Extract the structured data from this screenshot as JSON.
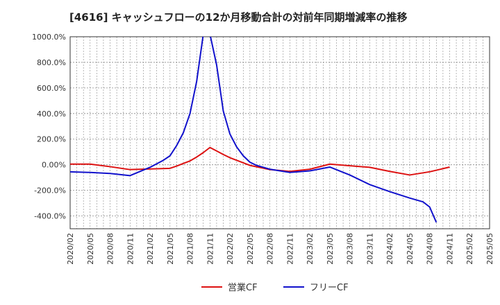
{
  "chart_data": {
    "type": "line",
    "title": "[4616]  キャッシュフローの12か月移動合計の対前年同期増減率の推移",
    "xlabel": "",
    "ylabel": "",
    "ylim": [
      -500,
      1000
    ],
    "yticks": [
      1000,
      800,
      600,
      400,
      200,
      0,
      -200,
      -400
    ],
    "ytick_labels": [
      "1000.0%",
      "800.0%",
      "600.0%",
      "400.0%",
      "200.0%",
      "0.00%",
      "-200.0%",
      "-400.0%"
    ],
    "x_ticks": [
      "2020/02",
      "2020/05",
      "2020/08",
      "2020/11",
      "2021/02",
      "2021/05",
      "2021/08",
      "2021/11",
      "2022/02",
      "2022/05",
      "2022/08",
      "2022/11",
      "2023/02",
      "2023/05",
      "2023/08",
      "2023/11",
      "2024/02",
      "2024/05",
      "2024/08",
      "2024/11",
      "2025/02",
      "2025/05"
    ],
    "grid": true,
    "legend_position": "bottom-center",
    "series": [
      {
        "name": "営業CF",
        "color": "#dd1111",
        "points": [
          [
            "2020/02",
            5
          ],
          [
            "2020/05",
            5
          ],
          [
            "2020/08",
            -15
          ],
          [
            "2020/11",
            -38
          ],
          [
            "2021/02",
            -33
          ],
          [
            "2021/05",
            -28
          ],
          [
            "2021/06",
            -10
          ],
          [
            "2021/07",
            10
          ],
          [
            "2021/08",
            30
          ],
          [
            "2021/09",
            60
          ],
          [
            "2021/10",
            95
          ],
          [
            "2021/11",
            135
          ],
          [
            "2021/12",
            108
          ],
          [
            "2022/01",
            80
          ],
          [
            "2022/02",
            55
          ],
          [
            "2022/03",
            35
          ],
          [
            "2022/05",
            -5
          ],
          [
            "2022/08",
            -38
          ],
          [
            "2022/11",
            -52
          ],
          [
            "2023/02",
            -35
          ],
          [
            "2023/05",
            5
          ],
          [
            "2023/08",
            -8
          ],
          [
            "2023/11",
            -20
          ],
          [
            "2024/02",
            -52
          ],
          [
            "2024/05",
            -80
          ],
          [
            "2024/08",
            -55
          ],
          [
            "2024/11",
            -18
          ]
        ]
      },
      {
        "name": "フリーCF",
        "color": "#1111cc",
        "points": [
          [
            "2020/02",
            -55
          ],
          [
            "2020/05",
            -60
          ],
          [
            "2020/08",
            -68
          ],
          [
            "2020/11",
            -85
          ],
          [
            "2021/02",
            -20
          ],
          [
            "2021/04",
            35
          ],
          [
            "2021/05",
            70
          ],
          [
            "2021/06",
            150
          ],
          [
            "2021/07",
            250
          ],
          [
            "2021/08",
            400
          ],
          [
            "2021/09",
            650
          ],
          [
            "2021/10",
            1020
          ],
          [
            "2021/11",
            1020
          ],
          [
            "2021/12",
            780
          ],
          [
            "2022/01",
            420
          ],
          [
            "2022/02",
            240
          ],
          [
            "2022/03",
            140
          ],
          [
            "2022/04",
            70
          ],
          [
            "2022/05",
            20
          ],
          [
            "2022/06",
            -5
          ],
          [
            "2022/08",
            -35
          ],
          [
            "2022/11",
            -60
          ],
          [
            "2023/02",
            -48
          ],
          [
            "2023/05",
            -18
          ],
          [
            "2023/08",
            -80
          ],
          [
            "2023/11",
            -155
          ],
          [
            "2024/02",
            -210
          ],
          [
            "2024/05",
            -260
          ],
          [
            "2024/07",
            -290
          ],
          [
            "2024/08",
            -330
          ],
          [
            "2024/09",
            -450
          ]
        ]
      }
    ]
  }
}
